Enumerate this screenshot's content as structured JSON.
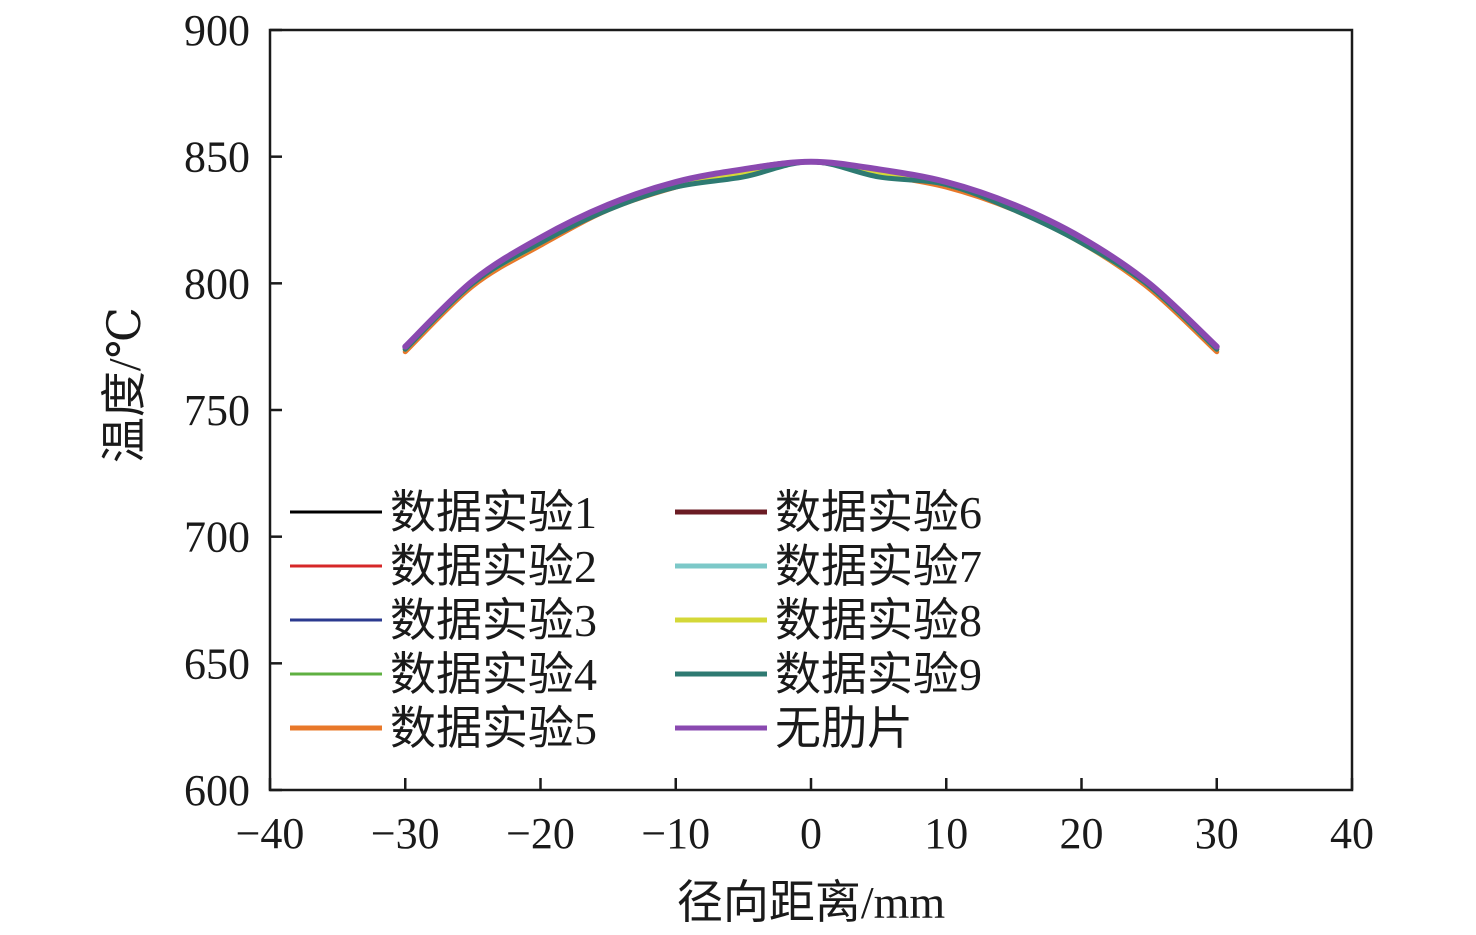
{
  "chart_data": {
    "type": "line",
    "xlabel": "径向距离/mm",
    "ylabel": "温度/℃",
    "xlim": [
      -40,
      40
    ],
    "ylim": [
      600,
      900
    ],
    "xticks": [
      -40,
      -30,
      -20,
      -10,
      0,
      10,
      20,
      30,
      40
    ],
    "yticks": [
      600,
      650,
      700,
      750,
      800,
      850,
      900
    ],
    "xtick_labels": [
      "−40",
      "−30",
      "−20",
      "−10",
      "0",
      "10",
      "20",
      "30",
      "40"
    ],
    "ytick_labels": [
      "600",
      "650",
      "700",
      "750",
      "800",
      "850",
      "900"
    ],
    "grid": false,
    "legend_position": "lower-left",
    "legend_columns": 2,
    "x": [
      -30,
      -25,
      -20,
      -15,
      -10,
      -5,
      0,
      5,
      10,
      15,
      20,
      25,
      30
    ],
    "series": [
      {
        "name": "数据实验1",
        "color": "#000000",
        "values": [
          774,
          800,
          817,
          830,
          839,
          845,
          848,
          844,
          839,
          830,
          817,
          799,
          774
        ]
      },
      {
        "name": "数据实验2",
        "color": "#d62728",
        "values": [
          774,
          800,
          817,
          830,
          839,
          845,
          848,
          844,
          839,
          830,
          817,
          799,
          774
        ]
      },
      {
        "name": "数据实验3",
        "color": "#2b3a8f",
        "values": [
          774,
          800,
          817,
          830,
          839,
          845,
          848,
          844,
          839,
          830,
          817,
          799,
          774
        ]
      },
      {
        "name": "数据实验4",
        "color": "#5fb041",
        "values": [
          773,
          799,
          815,
          829,
          838,
          844,
          848,
          843,
          838,
          829,
          816,
          798,
          773
        ]
      },
      {
        "name": "数据实验5",
        "color": "#e8782a",
        "values": [
          773,
          799,
          815,
          829,
          838,
          844,
          848,
          843,
          838,
          829,
          816,
          798,
          773
        ]
      },
      {
        "name": "数据实验6",
        "color": "#6b1c24",
        "values": [
          774,
          800,
          817,
          830,
          839,
          845,
          848,
          844,
          839,
          830,
          817,
          799,
          774
        ]
      },
      {
        "name": "数据实验7",
        "color": "#7cc8c8",
        "values": [
          774,
          800,
          817,
          830,
          839,
          844,
          848,
          843,
          839,
          830,
          817,
          799,
          774
        ]
      },
      {
        "name": "数据实验8",
        "color": "#d4d838",
        "values": [
          774,
          800,
          816,
          830,
          839,
          844,
          848,
          844,
          839,
          830,
          816,
          799,
          774
        ]
      },
      {
        "name": "数据实验9",
        "color": "#2e7a72",
        "values": [
          774,
          800,
          816,
          829,
          838,
          842,
          848,
          842,
          839,
          829,
          816,
          799,
          774
        ]
      },
      {
        "name": "无肋片",
        "color": "#8a49b0",
        "values": [
          775,
          801,
          818,
          831,
          840,
          845,
          848,
          845,
          840,
          831,
          818,
          800,
          775
        ]
      }
    ]
  }
}
